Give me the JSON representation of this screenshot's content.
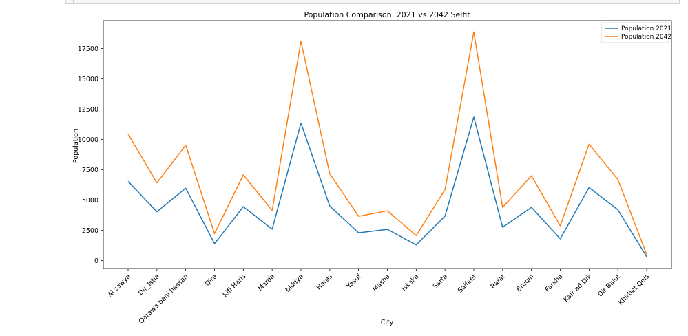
{
  "chart_data": {
    "type": "line",
    "title": "Population Comparison: 2021 vs 2042 Selfit",
    "xlabel": "City",
    "ylabel": "Population",
    "ylim": [
      -650,
      19800
    ],
    "yticks": [
      0,
      2500,
      5000,
      7500,
      10000,
      12500,
      15000,
      17500
    ],
    "categories": [
      "Al zawya",
      "Dir_Istia",
      "Qarawa bani hassan",
      "Qira",
      "Kifl Haris",
      "Marda",
      "biddya",
      "Haras",
      "Yasuf",
      "Masha",
      "Iskaka",
      "Sarta",
      "Salfeet",
      "Rafat",
      "Bruqin",
      "Farkha",
      "Kafr ad Dik",
      "Dir Balut",
      "Khirbet Qeis"
    ],
    "series": [
      {
        "name": "Population 2021",
        "color": "#1f77b4",
        "values": [
          6550,
          4030,
          5980,
          1400,
          4450,
          2600,
          11350,
          4500,
          2300,
          2580,
          1300,
          3680,
          11850,
          2760,
          4400,
          1800,
          6030,
          4200,
          320
        ]
      },
      {
        "name": "Population 2042",
        "color": "#ff7f0e",
        "values": [
          10450,
          6420,
          9530,
          2230,
          7080,
          4140,
          18100,
          7170,
          3660,
          4110,
          2070,
          5860,
          18870,
          4400,
          7010,
          2870,
          9610,
          6700,
          510
        ]
      }
    ],
    "legend_position": "top-right",
    "grid": false
  }
}
